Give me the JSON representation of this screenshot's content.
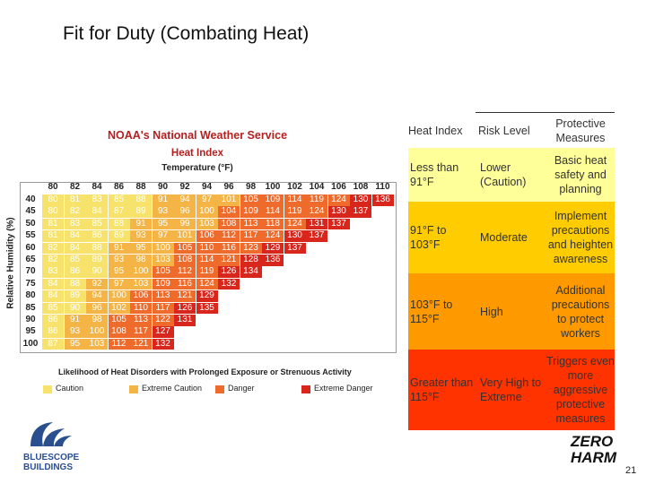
{
  "header": {
    "title": "Fit for Duty (Combating Heat)"
  },
  "heat_index_chart": {
    "title": "NOAA's National Weather Service",
    "subtitle": "Heat Index",
    "x_label": "Temperature (°F)",
    "y_label": "Relative Humidity (%)",
    "temperatures": [
      80,
      82,
      84,
      86,
      88,
      90,
      92,
      94,
      96,
      98,
      100,
      102,
      104,
      106,
      108,
      110
    ],
    "humidities": [
      40,
      45,
      50,
      55,
      60,
      65,
      70,
      75,
      80,
      85,
      90,
      95,
      100
    ],
    "rows": [
      [
        80,
        81,
        83,
        85,
        88,
        91,
        94,
        97,
        101,
        105,
        109,
        114,
        119,
        124,
        130,
        136
      ],
      [
        80,
        82,
        84,
        87,
        89,
        93,
        96,
        100,
        104,
        109,
        114,
        119,
        124,
        130,
        137
      ],
      [
        81,
        83,
        85,
        88,
        91,
        95,
        99,
        103,
        108,
        113,
        118,
        124,
        131,
        137
      ],
      [
        81,
        84,
        86,
        89,
        93,
        97,
        101,
        106,
        112,
        117,
        124,
        130,
        137
      ],
      [
        82,
        84,
        88,
        91,
        95,
        100,
        105,
        110,
        116,
        123,
        129,
        137
      ],
      [
        82,
        85,
        89,
        93,
        98,
        103,
        108,
        114,
        121,
        128,
        136
      ],
      [
        83,
        86,
        90,
        95,
        100,
        105,
        112,
        119,
        126,
        134
      ],
      [
        84,
        88,
        92,
        97,
        103,
        109,
        116,
        124,
        132
      ],
      [
        84,
        89,
        94,
        100,
        106,
        113,
        121,
        129
      ],
      [
        85,
        90,
        96,
        102,
        110,
        117,
        126,
        135
      ],
      [
        86,
        91,
        98,
        105,
        113,
        122,
        131
      ],
      [
        86,
        93,
        100,
        108,
        117,
        127
      ],
      [
        87,
        95,
        103,
        112,
        121,
        132
      ]
    ],
    "footer": "Likelihood of Heat Disorders with Prolonged Exposure or Strenuous Activity",
    "legend": [
      {
        "label": "Caution",
        "color": "#f7e36b"
      },
      {
        "label": "Extreme Caution",
        "color": "#f5b546"
      },
      {
        "label": "Danger",
        "color": "#ef6b2c"
      },
      {
        "label": "Extreme Danger",
        "color": "#d8261c"
      }
    ]
  },
  "table": {
    "headers": [
      "Heat Index",
      "Risk Level",
      "Protective Measures"
    ],
    "rows": [
      {
        "cells": [
          "Less than 91°F",
          "Lower (Caution)",
          "Basic heat safety and planning"
        ],
        "color": "#ffff99"
      },
      {
        "cells": [
          "91°F to 103°F",
          "Moderate",
          "Implement precautions and heighten awareness"
        ],
        "color": "#ffcc00"
      },
      {
        "cells": [
          "103°F to 115°F",
          "High",
          "Additional precautions to protect workers"
        ],
        "color": "#ff9900"
      },
      {
        "cells": [
          "Greater than 115°F",
          "Very High to Extreme",
          "Triggers even more aggressive protective measures"
        ],
        "color": "#ff3300"
      }
    ]
  },
  "logos": {
    "left": [
      "BLUESCOPE",
      "BUILDINGS"
    ],
    "right": [
      "ZERO",
      "HARM"
    ]
  },
  "page_number": "21"
}
